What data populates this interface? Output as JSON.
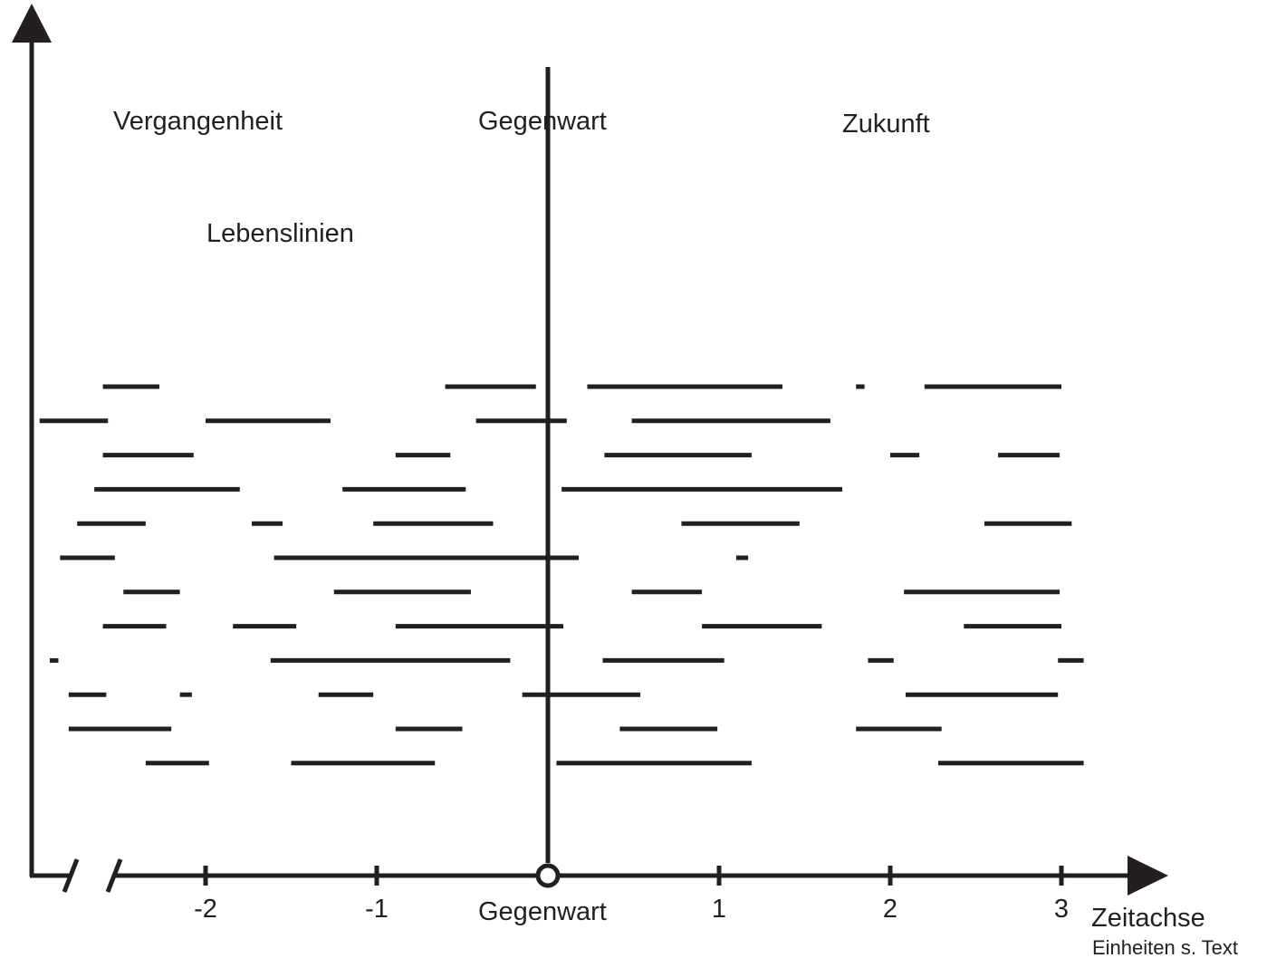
{
  "labels": {
    "past": "Vergangenheit",
    "present_top": "Gegenwart",
    "future": "Zukunft",
    "lifelines": "Lebenslinien",
    "present_axis": "Gegenwart",
    "axis_name": "Zeitachse",
    "units_note": "Einheiten s. Text"
  },
  "ticks": [
    {
      "value": -2,
      "label": "-2"
    },
    {
      "value": -1,
      "label": "-1"
    },
    {
      "value": 1,
      "label": "1"
    },
    {
      "value": 2,
      "label": "2"
    },
    {
      "value": 3,
      "label": "3"
    }
  ],
  "present_value": 0,
  "lifeline_rows": [
    [
      [
        -2.6,
        -2.27
      ],
      [
        -0.6,
        -0.07
      ],
      [
        0.23,
        1.37
      ],
      [
        1.8,
        1.85
      ],
      [
        2.2,
        3.0
      ]
    ],
    [
      [
        -2.97,
        -2.57
      ],
      [
        -2.0,
        -1.27
      ],
      [
        -0.42,
        0.11
      ],
      [
        0.49,
        1.65
      ]
    ],
    [
      [
        -2.6,
        -2.07
      ],
      [
        -0.89,
        -0.57
      ],
      [
        0.33,
        1.19
      ],
      [
        2.0,
        2.17
      ],
      [
        2.63,
        2.99
      ]
    ],
    [
      [
        -2.65,
        -1.8
      ],
      [
        -1.2,
        -0.48
      ],
      [
        0.08,
        1.72
      ]
    ],
    [
      [
        -2.75,
        -2.35
      ],
      [
        -1.73,
        -1.55
      ],
      [
        -1.02,
        -0.32
      ],
      [
        0.78,
        1.47
      ],
      [
        2.55,
        3.06
      ]
    ],
    [
      [
        -2.85,
        -2.53
      ],
      [
        -1.6,
        0.18
      ],
      [
        1.1,
        1.17
      ]
    ],
    [
      [
        -2.48,
        -2.15
      ],
      [
        -1.25,
        -0.45
      ],
      [
        0.49,
        0.9
      ],
      [
        2.08,
        2.99
      ]
    ],
    [
      [
        -2.6,
        -2.23
      ],
      [
        -1.84,
        -1.47
      ],
      [
        -0.89,
        0.09
      ],
      [
        0.9,
        1.6
      ],
      [
        2.43,
        3.0
      ]
    ],
    [
      [
        -2.91,
        -2.86
      ],
      [
        -1.62,
        -0.22
      ],
      [
        0.32,
        1.03
      ],
      [
        1.87,
        2.02
      ],
      [
        2.98,
        3.13
      ]
    ],
    [
      [
        -2.8,
        -2.58
      ],
      [
        -2.15,
        -2.08
      ],
      [
        -1.34,
        -1.02
      ],
      [
        -0.15,
        0.54
      ],
      [
        2.09,
        2.98
      ]
    ],
    [
      [
        -2.8,
        -2.2
      ],
      [
        -0.89,
        -0.5
      ],
      [
        0.42,
        0.99
      ],
      [
        1.8,
        2.3
      ]
    ],
    [
      [
        -2.35,
        -1.98
      ],
      [
        -1.5,
        -0.66
      ],
      [
        0.05,
        1.19
      ],
      [
        2.28,
        3.13
      ]
    ]
  ]
}
